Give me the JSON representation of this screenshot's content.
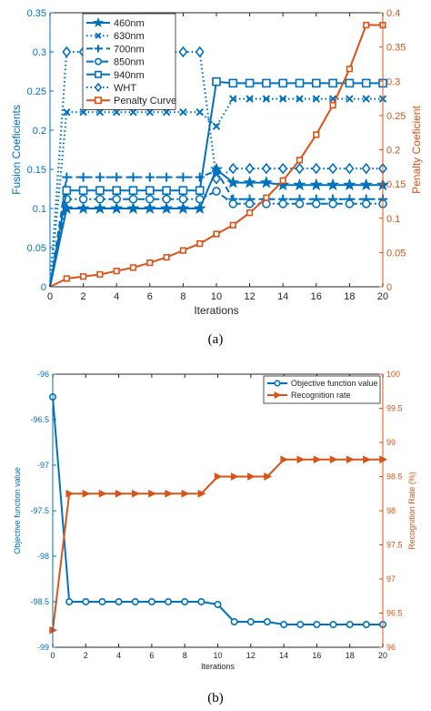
{
  "colors": {
    "blue": "#0072bd",
    "orange": "#d95319",
    "axis": "#262626"
  },
  "chart_data": [
    {
      "type": "line",
      "caption": "(a)",
      "xlabel": "Iterations",
      "ylabel": "Fusion Coeficients",
      "ylabel_right": "Penalty Coeficient",
      "xlim": [
        0,
        20
      ],
      "ylim": [
        0,
        0.35
      ],
      "ylim_right": [
        0,
        0.4
      ],
      "x_ticks": [
        "0",
        "2",
        "4",
        "6",
        "8",
        "10",
        "12",
        "14",
        "16",
        "18",
        "20"
      ],
      "y_ticks": [
        "0",
        "0.05",
        "0.1",
        "0.15",
        "0.2",
        "0.25",
        "0.3",
        "0.35"
      ],
      "y_ticks_right": [
        "0",
        "0.05",
        "0.1",
        "0.15",
        "0.2",
        "0.25",
        "0.3",
        "0.35",
        "0.4"
      ],
      "legend_position": "top-left",
      "x": [
        0,
        1,
        2,
        3,
        4,
        5,
        6,
        7,
        8,
        9,
        10,
        11,
        12,
        13,
        14,
        15,
        16,
        17,
        18,
        19,
        20
      ],
      "series": [
        {
          "name": "460nm",
          "axis": "left",
          "style": "solid",
          "marker": "star",
          "values": [
            0,
            0.1,
            0.1,
            0.1,
            0.1,
            0.1,
            0.1,
            0.1,
            0.1,
            0.1,
            0.15,
            0.133,
            0.133,
            0.133,
            0.13,
            0.13,
            0.13,
            0.13,
            0.13,
            0.13,
            0.13
          ]
        },
        {
          "name": "630nm",
          "axis": "left",
          "style": "dotted",
          "marker": "x",
          "values": [
            0,
            0.223,
            0.223,
            0.223,
            0.223,
            0.223,
            0.223,
            0.223,
            0.223,
            0.223,
            0.205,
            0.24,
            0.24,
            0.24,
            0.24,
            0.24,
            0.24,
            0.24,
            0.24,
            0.24,
            0.24
          ]
        },
        {
          "name": "700nm",
          "axis": "left",
          "style": "dashed",
          "marker": "plus",
          "values": [
            0,
            0.14,
            0.14,
            0.14,
            0.14,
            0.14,
            0.14,
            0.14,
            0.14,
            0.14,
            0.148,
            0.112,
            0.112,
            0.112,
            0.112,
            0.112,
            0.112,
            0.112,
            0.112,
            0.112,
            0.112
          ]
        },
        {
          "name": "850nm",
          "axis": "left",
          "style": "dashdot",
          "marker": "circle",
          "values": [
            0,
            0.112,
            0.112,
            0.112,
            0.112,
            0.112,
            0.112,
            0.112,
            0.112,
            0.112,
            0.122,
            0.106,
            0.106,
            0.106,
            0.106,
            0.106,
            0.106,
            0.106,
            0.106,
            0.106,
            0.106
          ]
        },
        {
          "name": "940nm",
          "axis": "left",
          "style": "solid",
          "marker": "square",
          "values": [
            0,
            0.123,
            0.123,
            0.123,
            0.123,
            0.123,
            0.123,
            0.123,
            0.123,
            0.123,
            0.262,
            0.26,
            0.26,
            0.26,
            0.26,
            0.26,
            0.26,
            0.26,
            0.26,
            0.26,
            0.26
          ]
        },
        {
          "name": "WHT",
          "axis": "left",
          "style": "dotted",
          "marker": "diamond",
          "values": [
            0,
            0.3,
            0.3,
            0.3,
            0.3,
            0.3,
            0.3,
            0.3,
            0.3,
            0.3,
            0.138,
            0.151,
            0.151,
            0.151,
            0.151,
            0.151,
            0.151,
            0.151,
            0.151,
            0.151,
            0.151
          ]
        },
        {
          "name": "Penalty Curve",
          "axis": "right",
          "style": "solid",
          "marker": "square",
          "values": [
            0,
            0.012,
            0.015,
            0.018,
            0.023,
            0.028,
            0.035,
            0.043,
            0.053,
            0.063,
            0.077,
            0.09,
            0.108,
            0.13,
            0.155,
            0.185,
            0.222,
            0.265,
            0.318,
            0.382,
            0.382
          ]
        }
      ]
    },
    {
      "type": "line",
      "caption": "(b)",
      "xlabel": "Iterations",
      "ylabel": "Objective function value",
      "ylabel_right": "Recognition Rate (%)",
      "xlim": [
        0,
        20
      ],
      "ylim": [
        -99,
        -96
      ],
      "ylim_right": [
        96,
        100
      ],
      "x_ticks": [
        "0",
        "2",
        "4",
        "6",
        "8",
        "10",
        "12",
        "14",
        "16",
        "18",
        "20"
      ],
      "y_ticks": [
        "-96",
        "-96.5",
        "-97",
        "-97.5",
        "-98",
        "-98.5",
        "-99"
      ],
      "y_ticks_right": [
        "100",
        "99.5",
        "99",
        "98.5",
        "98",
        "97.5",
        "97",
        "96.5",
        "96"
      ],
      "legend_position": "top-right",
      "x": [
        0,
        1,
        2,
        3,
        4,
        5,
        6,
        7,
        8,
        9,
        10,
        11,
        12,
        13,
        14,
        15,
        16,
        17,
        18,
        19,
        20
      ],
      "series": [
        {
          "name": "Objective function value",
          "axis": "left",
          "marker": "circle",
          "values": [
            -96.25,
            -98.5,
            -98.5,
            -98.5,
            -98.5,
            -98.5,
            -98.5,
            -98.5,
            -98.5,
            -98.5,
            -98.53,
            -98.72,
            -98.72,
            -98.72,
            -98.75,
            -98.75,
            -98.75,
            -98.75,
            -98.75,
            -98.75,
            -98.75
          ]
        },
        {
          "name": "Recognition rate",
          "axis": "right",
          "marker": "triangle-right",
          "values": [
            96.25,
            98.25,
            98.25,
            98.25,
            98.25,
            98.25,
            98.25,
            98.25,
            98.25,
            98.25,
            98.5,
            98.5,
            98.5,
            98.5,
            98.75,
            98.75,
            98.75,
            98.75,
            98.75,
            98.75,
            98.75
          ]
        }
      ]
    }
  ]
}
